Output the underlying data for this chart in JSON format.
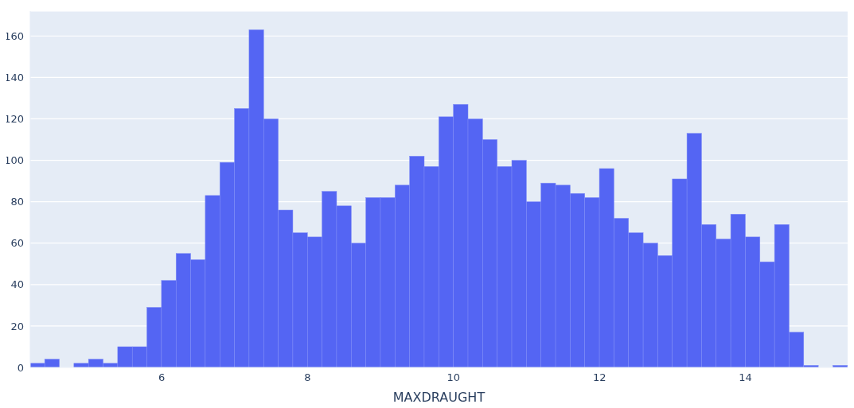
{
  "chart_data": {
    "type": "histogram",
    "xlabel": "MAXDRAUGHT",
    "color": "#5465f3",
    "bins": [
      4.2,
      4.4,
      4.6,
      4.8,
      5.0,
      5.2,
      5.4,
      5.6,
      5.8,
      6.0,
      6.2,
      6.4,
      6.6,
      6.8,
      7.0,
      7.2,
      7.4,
      7.6,
      7.8,
      8.0,
      8.2,
      8.4,
      8.6,
      8.8,
      9.0,
      9.2,
      9.4,
      9.6,
      9.8,
      10.0,
      10.2,
      10.4,
      10.6,
      10.8,
      11.0,
      11.2,
      11.4,
      11.6,
      11.8,
      12.0,
      12.2,
      12.4,
      12.6,
      12.8,
      13.0,
      13.2,
      13.4,
      13.6,
      13.8,
      14.0,
      14.2,
      14.4,
      14.6,
      14.8,
      15.0,
      15.2,
      15.4
    ],
    "values": [
      2,
      4,
      0,
      2,
      4,
      2,
      10,
      10,
      29,
      42,
      55,
      52,
      83,
      99,
      125,
      163,
      120,
      76,
      65,
      63,
      85,
      78,
      60,
      82,
      82,
      88,
      102,
      97,
      121,
      127,
      120,
      110,
      97,
      100,
      80,
      89,
      88,
      84,
      82,
      96,
      72,
      65,
      60,
      54,
      91,
      113,
      69,
      62,
      74,
      63,
      51,
      69,
      17,
      1,
      0,
      1
    ],
    "xlim": [
      4.2,
      15.4
    ],
    "xticks": [
      6,
      8,
      10,
      12,
      14
    ],
    "ylim": [
      0,
      172
    ],
    "yticks": [
      0,
      20,
      40,
      60,
      80,
      100,
      120,
      140,
      160
    ],
    "grid": "y",
    "legend": false
  }
}
